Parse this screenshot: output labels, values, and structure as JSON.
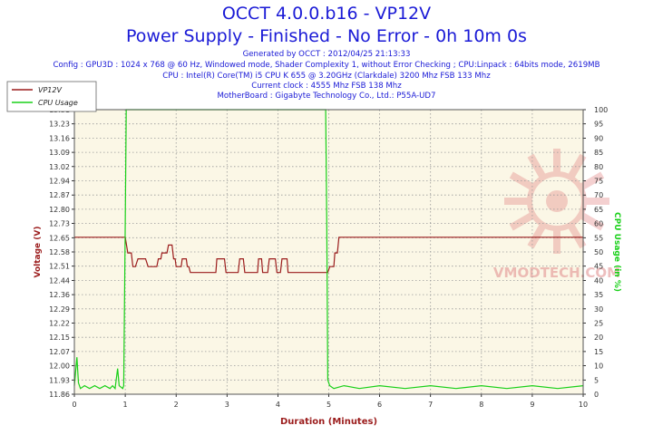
{
  "header": {
    "title": "OCCT 4.0.0.b16 - VP12V",
    "subtitle": "Power Supply - Finished - No Error - 0h 10m 0s",
    "info_lines": [
      "Generated by OCCT : 2012/04/25 21:13:33",
      "Config : GPU3D : 1024 x 768 @ 60 Hz, Windowed mode, Shader Complexity 1, without Error Checking ; CPU:Linpack : 64bits mode, 2619MB",
      "CPU : Intel(R) Core(TM) i5 CPU K 655 @ 3.20GHz (Clarkdale) 3200 Mhz FSB 133 Mhz",
      "Current clock : 4555 Mhz FSB 138 Mhz",
      "MotherBoard : Gigabyte Technology Co., Ltd.: P55A-UD7"
    ]
  },
  "chart_data": {
    "type": "line",
    "xlabel": "Duration (Minutes)",
    "ylabel": "Voltage (V)",
    "y2label": "CPU Usage (in %)",
    "xlim": [
      0,
      10
    ],
    "ylim": [
      11.86,
      13.31
    ],
    "y2lim": [
      0,
      100
    ],
    "xticks": [
      "0",
      "1",
      "2",
      "3",
      "4",
      "5",
      "6",
      "7",
      "8",
      "9",
      "10"
    ],
    "yticks": [
      "11.86",
      "11.93",
      "12.00",
      "12.07",
      "12.15",
      "12.22",
      "12.29",
      "12.36",
      "12.44",
      "12.51",
      "12.58",
      "12.65",
      "12.73",
      "12.80",
      "12.87",
      "12.94",
      "13.02",
      "13.09",
      "13.16",
      "13.23",
      "13.31"
    ],
    "y2ticks": [
      "0",
      "5",
      "10",
      "15",
      "20",
      "25",
      "30",
      "35",
      "40",
      "45",
      "50",
      "55",
      "60",
      "65",
      "70",
      "75",
      "80",
      "85",
      "90",
      "95",
      "100"
    ],
    "grid": true,
    "legend_position": "top-left",
    "series": [
      {
        "name": "VP12V",
        "color": "#9b1c1c",
        "axis": "left",
        "points": [
          [
            0,
            12.66
          ],
          [
            1.0,
            12.66
          ],
          [
            1.05,
            12.58
          ],
          [
            1.12,
            12.58
          ],
          [
            1.15,
            12.51
          ],
          [
            1.2,
            12.51
          ],
          [
            1.25,
            12.55
          ],
          [
            1.4,
            12.55
          ],
          [
            1.45,
            12.51
          ],
          [
            1.62,
            12.51
          ],
          [
            1.65,
            12.55
          ],
          [
            1.7,
            12.55
          ],
          [
            1.72,
            12.58
          ],
          [
            1.82,
            12.58
          ],
          [
            1.85,
            12.62
          ],
          [
            1.92,
            12.62
          ],
          [
            1.95,
            12.55
          ],
          [
            1.98,
            12.55
          ],
          [
            2.0,
            12.51
          ],
          [
            2.1,
            12.51
          ],
          [
            2.12,
            12.55
          ],
          [
            2.2,
            12.55
          ],
          [
            2.22,
            12.51
          ],
          [
            2.25,
            12.51
          ],
          [
            2.28,
            12.48
          ],
          [
            2.78,
            12.48
          ],
          [
            2.8,
            12.55
          ],
          [
            2.95,
            12.55
          ],
          [
            2.98,
            12.48
          ],
          [
            3.22,
            12.48
          ],
          [
            3.25,
            12.55
          ],
          [
            3.32,
            12.55
          ],
          [
            3.35,
            12.48
          ],
          [
            3.6,
            12.48
          ],
          [
            3.62,
            12.55
          ],
          [
            3.68,
            12.55
          ],
          [
            3.7,
            12.48
          ],
          [
            3.8,
            12.48
          ],
          [
            3.83,
            12.55
          ],
          [
            3.95,
            12.55
          ],
          [
            3.98,
            12.48
          ],
          [
            4.05,
            12.48
          ],
          [
            4.08,
            12.55
          ],
          [
            4.18,
            12.55
          ],
          [
            4.2,
            12.48
          ],
          [
            4.98,
            12.48
          ],
          [
            5.02,
            12.51
          ],
          [
            5.1,
            12.51
          ],
          [
            5.12,
            12.58
          ],
          [
            5.17,
            12.58
          ],
          [
            5.2,
            12.66
          ],
          [
            10,
            12.66
          ]
        ]
      },
      {
        "name": "CPU Usage",
        "color": "#19d019",
        "axis": "right",
        "points": [
          [
            0,
            3
          ],
          [
            0.05,
            13
          ],
          [
            0.08,
            4
          ],
          [
            0.12,
            2
          ],
          [
            0.2,
            3
          ],
          [
            0.3,
            2
          ],
          [
            0.4,
            3
          ],
          [
            0.5,
            2
          ],
          [
            0.6,
            3
          ],
          [
            0.7,
            2
          ],
          [
            0.75,
            3
          ],
          [
            0.8,
            2
          ],
          [
            0.85,
            9
          ],
          [
            0.88,
            3
          ],
          [
            0.95,
            2
          ],
          [
            0.97,
            3
          ],
          [
            1.0,
            60
          ],
          [
            1.02,
            100
          ],
          [
            4.94,
            100
          ],
          [
            4.96,
            60
          ],
          [
            4.98,
            5
          ],
          [
            5.02,
            3
          ],
          [
            5.1,
            2
          ],
          [
            5.3,
            3
          ],
          [
            5.6,
            2
          ],
          [
            6.0,
            3
          ],
          [
            6.5,
            2
          ],
          [
            7.0,
            3
          ],
          [
            7.5,
            2
          ],
          [
            8.0,
            3
          ],
          [
            8.5,
            2
          ],
          [
            9.0,
            3
          ],
          [
            9.5,
            2
          ],
          [
            10,
            3
          ]
        ]
      }
    ]
  },
  "watermark": "VMODTECH.COM",
  "colors": {
    "title": "#1a1ad6",
    "voltage_axis": "#9b1c1c",
    "usage_axis": "#19d019",
    "plot_bg": "#fbf7e6",
    "grid": "#9a9a9a"
  }
}
